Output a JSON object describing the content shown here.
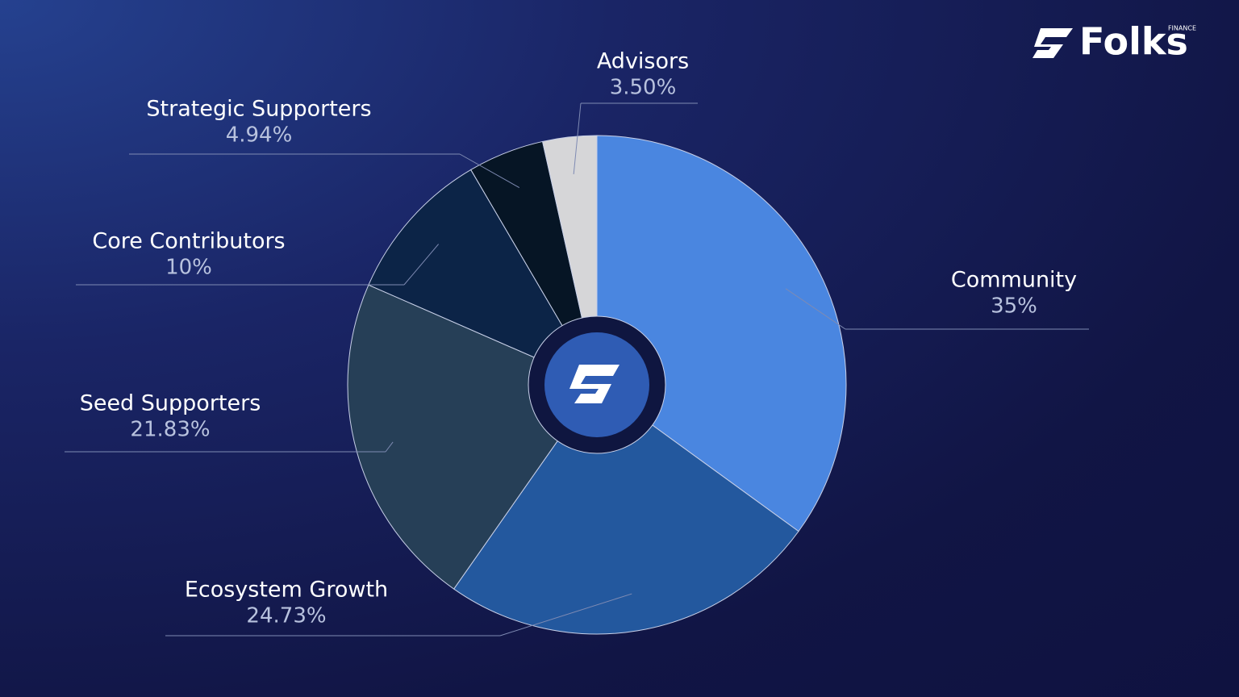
{
  "brand": {
    "name": "Folks",
    "sub": "FINANCE"
  },
  "chart_data": {
    "type": "pie",
    "categories": [
      "Community",
      "Ecosystem Growth",
      "Seed Supporters",
      "Core Contributors",
      "Strategic Supporters",
      "Advisors"
    ],
    "values": [
      35,
      24.73,
      21.83,
      10,
      4.94,
      3.5
    ],
    "value_labels": [
      "35%",
      "24.73%",
      "21.83%",
      "10%",
      "4.94%",
      "3.50%"
    ],
    "colors": [
      "#4a86e0",
      "#23589e",
      "#263f57",
      "#0c2447",
      "#061525",
      "#d6d6d8"
    ]
  }
}
